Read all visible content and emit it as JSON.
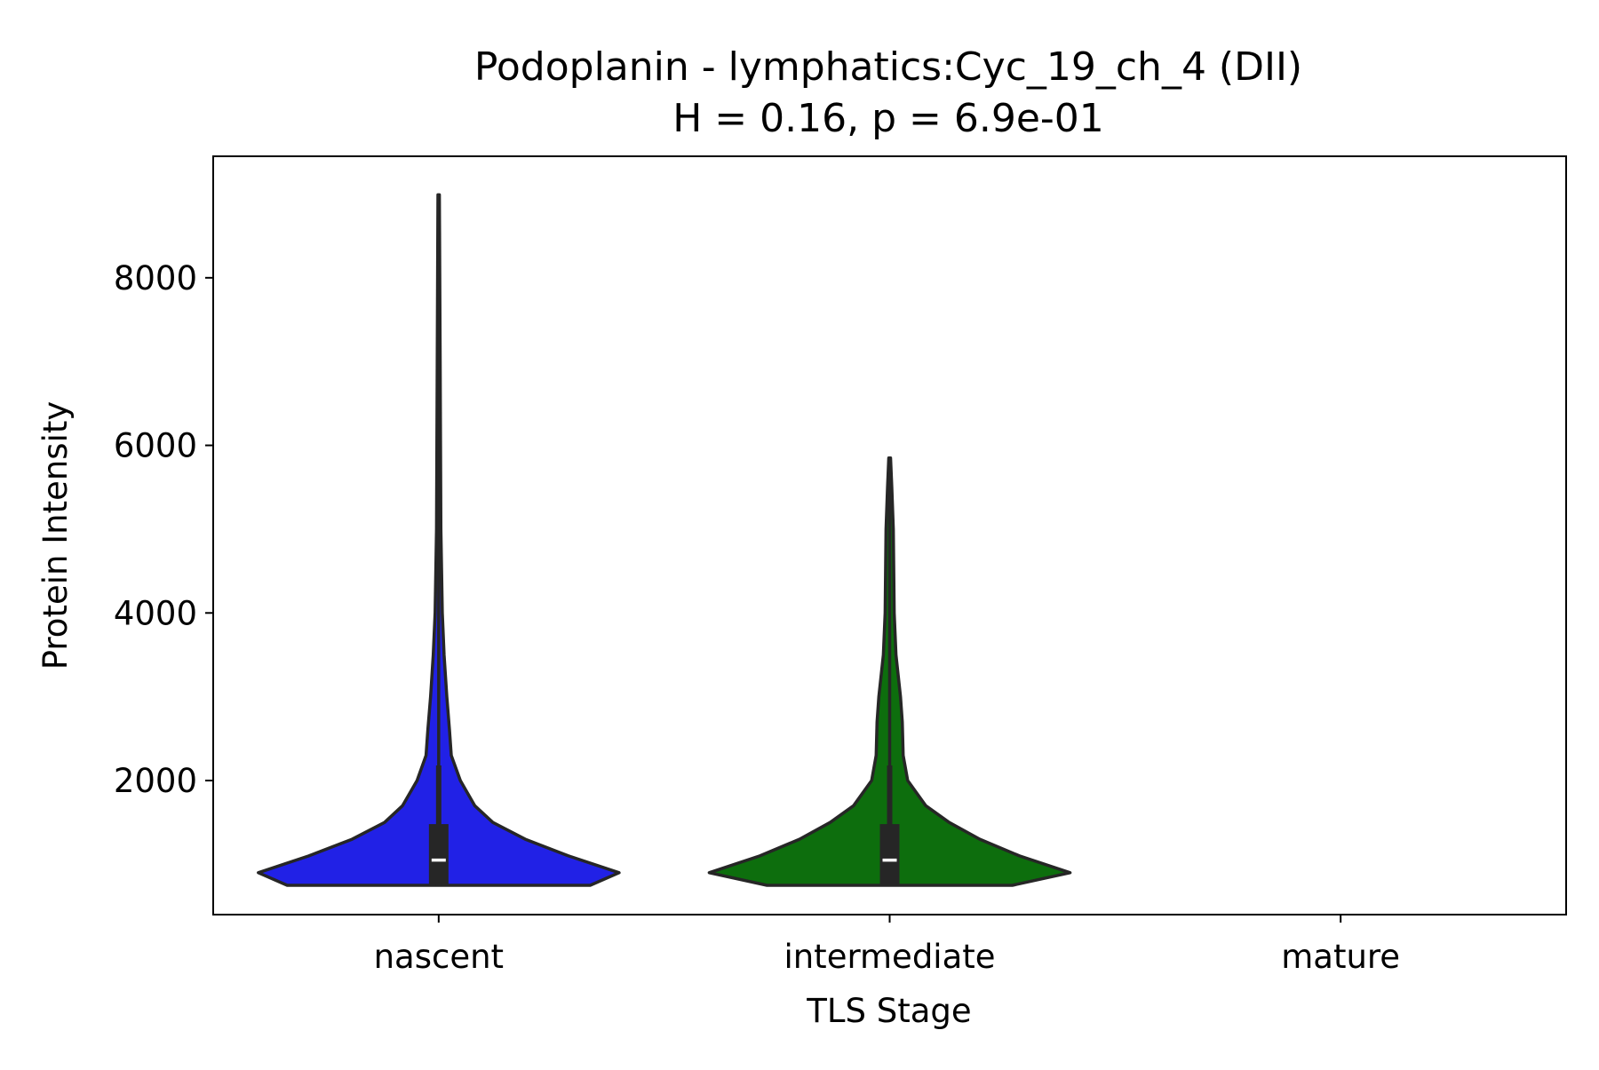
{
  "chart_data": {
    "type": "violin",
    "title": "Podoplanin - lymphatics:Cyc_19_ch_4 (DII)",
    "subtitle": "H = 0.16, p = 6.9e-01",
    "xlabel": "TLS Stage",
    "ylabel": "Protein Intensity",
    "categories": [
      "nascent",
      "intermediate",
      "mature"
    ],
    "yticks": [
      2000,
      4000,
      6000,
      8000
    ],
    "ytick_labels": [
      "2000",
      "4000",
      "6000",
      "8000"
    ],
    "ylim": [
      400,
      9450
    ],
    "grid": false,
    "groups": [
      {
        "category": "nascent",
        "color": "#2121e6",
        "min": 750,
        "q1": 760,
        "median": 1050,
        "q3": 1480,
        "whisker_high": 2180,
        "max": 8990,
        "profile": [
          [
            750,
            0.84
          ],
          [
            900,
            1.0
          ],
          [
            1100,
            0.72
          ],
          [
            1300,
            0.48
          ],
          [
            1500,
            0.3
          ],
          [
            1700,
            0.2
          ],
          [
            2000,
            0.12
          ],
          [
            2300,
            0.07
          ],
          [
            2600,
            0.06
          ],
          [
            3000,
            0.045
          ],
          [
            3500,
            0.03
          ],
          [
            4000,
            0.02
          ],
          [
            5000,
            0.012
          ],
          [
            6000,
            0.01
          ],
          [
            7000,
            0.008
          ],
          [
            8990,
            0.004
          ]
        ]
      },
      {
        "category": "intermediate",
        "color": "#0d6e0d",
        "min": 750,
        "q1": 760,
        "median": 1050,
        "q3": 1480,
        "whisker_high": 2180,
        "max": 5850,
        "profile": [
          [
            750,
            0.68
          ],
          [
            900,
            1.0
          ],
          [
            1100,
            0.72
          ],
          [
            1300,
            0.5
          ],
          [
            1500,
            0.33
          ],
          [
            1700,
            0.2
          ],
          [
            2000,
            0.1
          ],
          [
            2300,
            0.075
          ],
          [
            2700,
            0.07
          ],
          [
            3000,
            0.06
          ],
          [
            3500,
            0.035
          ],
          [
            4000,
            0.025
          ],
          [
            5000,
            0.02
          ],
          [
            5500,
            0.012
          ],
          [
            5850,
            0.005
          ]
        ]
      }
    ]
  }
}
